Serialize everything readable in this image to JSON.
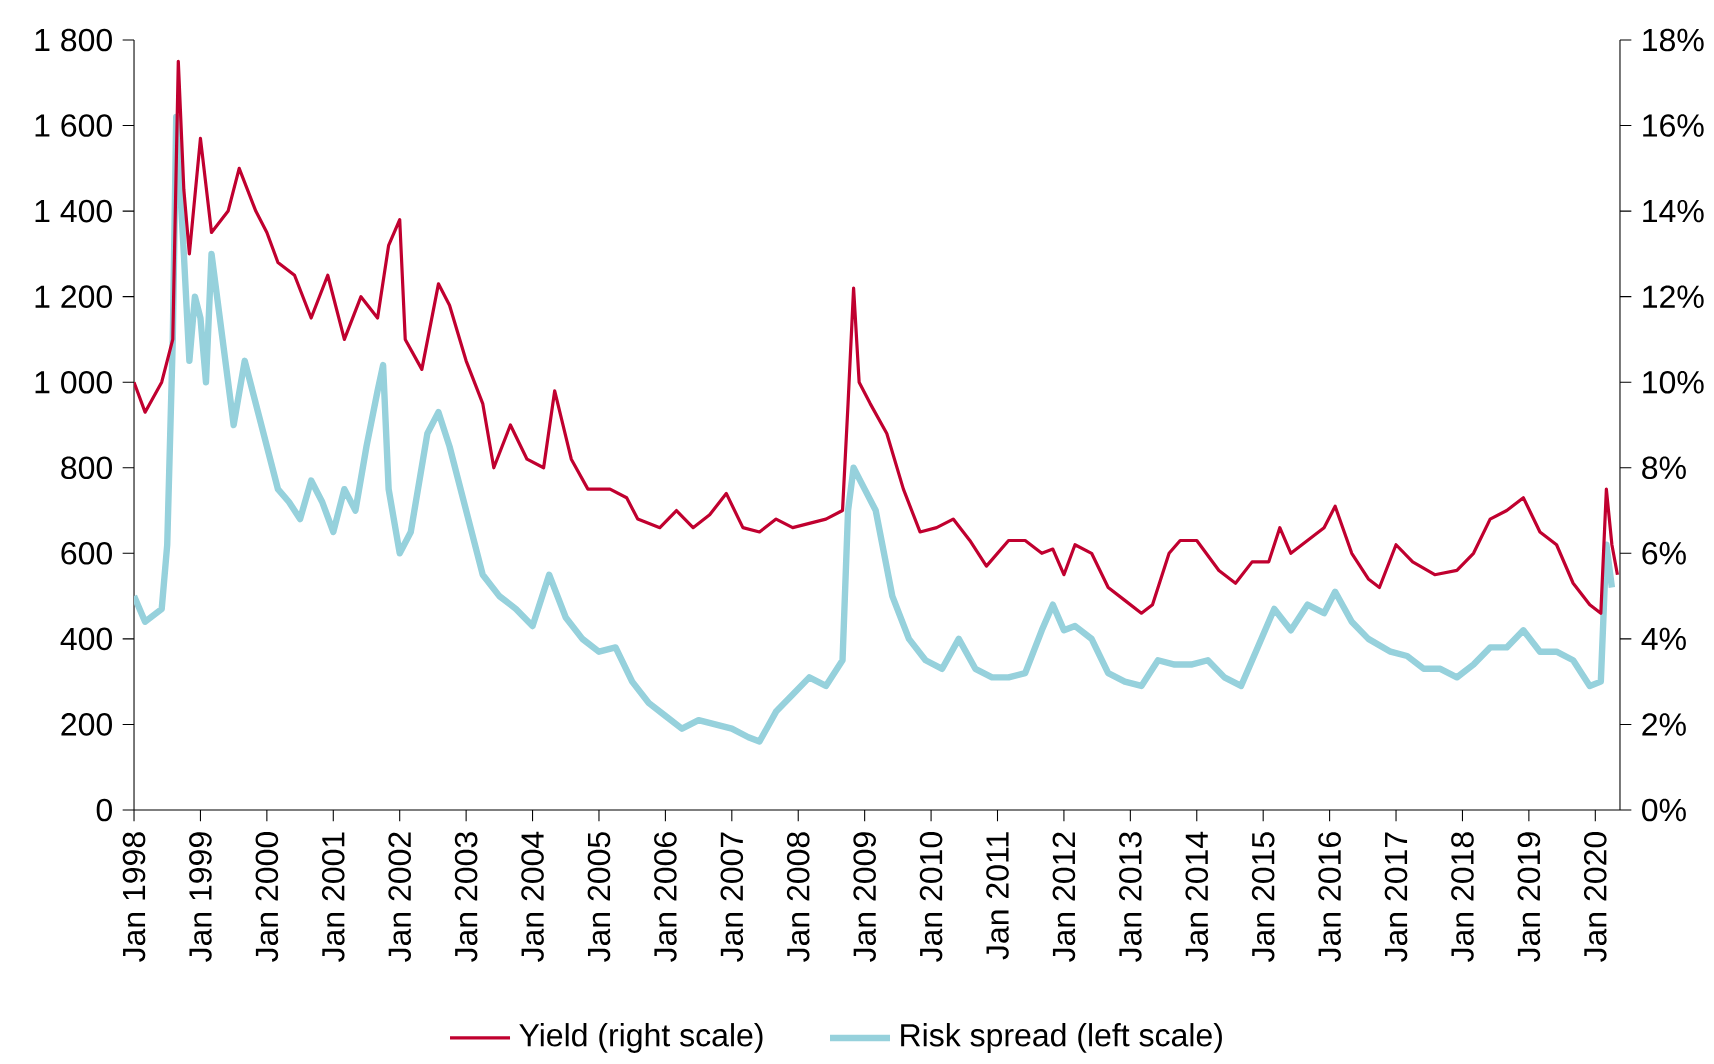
{
  "chart_data": {
    "type": "line",
    "xlim": [
      "1998-01",
      "2020-05-15"
    ],
    "xticks": [
      {
        "value": "1998-01",
        "label": "Jan 1998"
      },
      {
        "value": "1999-01",
        "label": "Jan 1999"
      },
      {
        "value": "2000-01",
        "label": "Jan 2000"
      },
      {
        "value": "2001-01",
        "label": "Jan 2001"
      },
      {
        "value": "2002-01",
        "label": "Jan 2002"
      },
      {
        "value": "2003-01",
        "label": "Jan 2003"
      },
      {
        "value": "2004-01",
        "label": "Jan 2004"
      },
      {
        "value": "2005-01",
        "label": "Jan 2005"
      },
      {
        "value": "2006-01",
        "label": "Jan 2006"
      },
      {
        "value": "2007-01",
        "label": "Jan 2007"
      },
      {
        "value": "2008-01",
        "label": "Jan 2008"
      },
      {
        "value": "2009-01",
        "label": "Jan 2009"
      },
      {
        "value": "2010-01",
        "label": "Jan 2010"
      },
      {
        "value": "2011-01",
        "label": "Jan 2011"
      },
      {
        "value": "2012-01",
        "label": "Jan 2012"
      },
      {
        "value": "2013-01",
        "label": "Jan 2013"
      },
      {
        "value": "2014-01",
        "label": "Jan 2014"
      },
      {
        "value": "2015-01",
        "label": "Jan 2015"
      },
      {
        "value": "2016-01",
        "label": "Jan 2016"
      },
      {
        "value": "2017-01",
        "label": "Jan 2017"
      },
      {
        "value": "2018-01",
        "label": "Jan 2018"
      },
      {
        "value": "2019-01",
        "label": "Jan 2019"
      },
      {
        "value": "2020-01",
        "label": "Jan 2020"
      }
    ],
    "ylim": [
      0,
      1800
    ],
    "yticks": [
      0,
      200,
      400,
      600,
      800,
      {
        "value": 1000,
        "label": "1 000"
      },
      {
        "value": 1200,
        "label": "1 200"
      },
      {
        "value": 1400,
        "label": "1 400"
      },
      {
        "value": 1600,
        "label": "1 600"
      },
      {
        "value": 1800,
        "label": "1 800"
      }
    ],
    "y2lim": [
      0,
      18
    ],
    "y2ticks": [
      {
        "value": 0,
        "label": "0%"
      },
      {
        "value": 2,
        "label": "2%"
      },
      {
        "value": 4,
        "label": "4%"
      },
      {
        "value": 6,
        "label": "6%"
      },
      {
        "value": 8,
        "label": "8%"
      },
      {
        "value": 10,
        "label": "10%"
      },
      {
        "value": 12,
        "label": "12%"
      },
      {
        "value": 14,
        "label": "14%"
      },
      {
        "value": 16,
        "label": "16%"
      },
      {
        "value": 18,
        "label": "18%"
      }
    ],
    "legend": "bottom",
    "series": [
      {
        "name": "Yield (right scale)",
        "color": "#c0002f",
        "axis": "y2",
        "x": [
          "1998-01",
          "1998-03",
          "1998-06",
          "1998-08",
          "1998-09",
          "1998-10",
          "1998-11",
          "1999-01",
          "1999-03",
          "1999-06",
          "1999-08",
          "1999-11",
          "2000-01",
          "2000-03",
          "2000-06",
          "2000-09",
          "2000-12",
          "2001-03",
          "2001-06",
          "2001-09",
          "2001-11",
          "2002-01",
          "2002-02",
          "2002-05",
          "2002-08",
          "2002-10",
          "2003-01",
          "2003-04",
          "2003-06",
          "2003-09",
          "2003-12",
          "2004-03",
          "2004-05",
          "2004-08",
          "2004-11",
          "2005-03",
          "2005-06",
          "2005-08",
          "2005-12",
          "2006-03",
          "2006-06",
          "2006-09",
          "2006-12",
          "2007-03",
          "2007-06",
          "2007-09",
          "2007-12",
          "2008-03",
          "2008-06",
          "2008-09",
          "2008-10",
          "2008-11",
          "2008-12",
          "2009-02",
          "2009-05",
          "2009-08",
          "2009-11",
          "2010-02",
          "2010-05",
          "2010-08",
          "2010-11",
          "2011-03",
          "2011-06",
          "2011-09",
          "2011-11",
          "2012-01",
          "2012-03",
          "2012-06",
          "2012-09",
          "2012-12",
          "2013-03",
          "2013-05",
          "2013-08",
          "2013-10",
          "2014-01",
          "2014-05",
          "2014-08",
          "2014-11",
          "2015-02",
          "2015-04",
          "2015-06",
          "2015-09",
          "2015-12",
          "2016-02",
          "2016-05",
          "2016-08",
          "2016-10",
          "2017-01",
          "2017-04",
          "2017-08",
          "2017-12",
          "2018-03",
          "2018-06",
          "2018-09",
          "2018-12",
          "2019-03",
          "2019-06",
          "2019-09",
          "2019-12",
          "2020-02",
          "2020-03",
          "2020-04",
          "2020-05"
        ],
        "values": [
          10.0,
          9.3,
          10.0,
          11.0,
          17.5,
          14.5,
          13.0,
          15.7,
          13.5,
          14.0,
          15.0,
          14.0,
          13.5,
          12.8,
          12.5,
          11.5,
          12.5,
          11.0,
          12.0,
          11.5,
          13.2,
          13.8,
          11.0,
          10.3,
          12.3,
          11.8,
          10.5,
          9.5,
          8.0,
          9.0,
          8.2,
          8.0,
          9.8,
          8.2,
          7.5,
          7.5,
          7.3,
          6.8,
          6.6,
          7.0,
          6.6,
          6.9,
          7.4,
          6.6,
          6.5,
          6.8,
          6.6,
          6.7,
          6.8,
          7.0,
          9.5,
          12.2,
          10.0,
          9.5,
          8.8,
          7.5,
          6.5,
          6.6,
          6.8,
          6.3,
          5.7,
          6.3,
          6.3,
          6.0,
          6.1,
          5.5,
          6.2,
          6.0,
          5.2,
          4.9,
          4.6,
          4.8,
          6.0,
          6.3,
          6.3,
          5.6,
          5.3,
          5.8,
          5.8,
          6.6,
          6.0,
          6.3,
          6.6,
          7.1,
          6.0,
          5.4,
          5.2,
          6.2,
          5.8,
          5.5,
          5.6,
          6.0,
          6.8,
          7.0,
          7.3,
          6.5,
          6.2,
          5.3,
          4.8,
          4.6,
          7.5,
          6.2,
          5.5
        ]
      },
      {
        "name": "Risk spread (left scale)",
        "color": "#96d1dc",
        "x": [
          "1998-01",
          "1998-03",
          "1998-06",
          "1998-07",
          "1998-08",
          "1998-08-20",
          "1998-10",
          "1998-11",
          "1998-12",
          "1999-01",
          "1999-02",
          "1999-03",
          "1999-05",
          "1999-07",
          "1999-09",
          "1999-11",
          "2000-01",
          "2000-03",
          "2000-05",
          "2000-07",
          "2000-09",
          "2000-11",
          "2001-01",
          "2001-03",
          "2001-05",
          "2001-07",
          "2001-09",
          "2001-10",
          "2001-11",
          "2002-01",
          "2002-03",
          "2002-06",
          "2002-08",
          "2002-10",
          "2003-01",
          "2003-04",
          "2003-07",
          "2003-10",
          "2004-01",
          "2004-04",
          "2004-07",
          "2004-10",
          "2005-01",
          "2005-04",
          "2005-07",
          "2005-10",
          "2006-01",
          "2006-04",
          "2006-07",
          "2006-10",
          "2007-01",
          "2007-04",
          "2007-06",
          "2007-09",
          "2007-12",
          "2008-03",
          "2008-06",
          "2008-09",
          "2008-10",
          "2008-11",
          "2009-01",
          "2009-03",
          "2009-06",
          "2009-09",
          "2009-12",
          "2010-03",
          "2010-06",
          "2010-09",
          "2010-12",
          "2011-03",
          "2011-06",
          "2011-09",
          "2011-11",
          "2012-01",
          "2012-03",
          "2012-06",
          "2012-09",
          "2012-12",
          "2013-03",
          "2013-06",
          "2013-09",
          "2013-12",
          "2014-03",
          "2014-06",
          "2014-09",
          "2014-12",
          "2015-03",
          "2015-06",
          "2015-09",
          "2015-12",
          "2016-02",
          "2016-05",
          "2016-08",
          "2016-12",
          "2017-03",
          "2017-06",
          "2017-09",
          "2017-12",
          "2018-03",
          "2018-06",
          "2018-09",
          "2018-12",
          "2019-03",
          "2019-06",
          "2019-09",
          "2019-12",
          "2020-02",
          "2020-03",
          "2020-04"
        ],
        "values": [
          500,
          440,
          470,
          620,
          1100,
          1620,
          1300,
          1050,
          1200,
          1150,
          1000,
          1300,
          1100,
          900,
          1050,
          950,
          850,
          750,
          720,
          680,
          770,
          720,
          650,
          750,
          700,
          850,
          980,
          1040,
          750,
          600,
          650,
          880,
          930,
          850,
          700,
          550,
          500,
          470,
          430,
          550,
          450,
          400,
          370,
          380,
          300,
          250,
          220,
          190,
          210,
          200,
          190,
          170,
          160,
          230,
          270,
          310,
          290,
          350,
          700,
          800,
          750,
          700,
          500,
          400,
          350,
          330,
          400,
          330,
          310,
          310,
          320,
          420,
          480,
          420,
          430,
          400,
          320,
          300,
          290,
          350,
          340,
          340,
          350,
          310,
          290,
          380,
          470,
          420,
          480,
          460,
          510,
          440,
          400,
          370,
          360,
          330,
          330,
          310,
          340,
          380,
          380,
          420,
          370,
          370,
          350,
          290,
          300,
          620,
          520
        ]
      }
    ]
  }
}
